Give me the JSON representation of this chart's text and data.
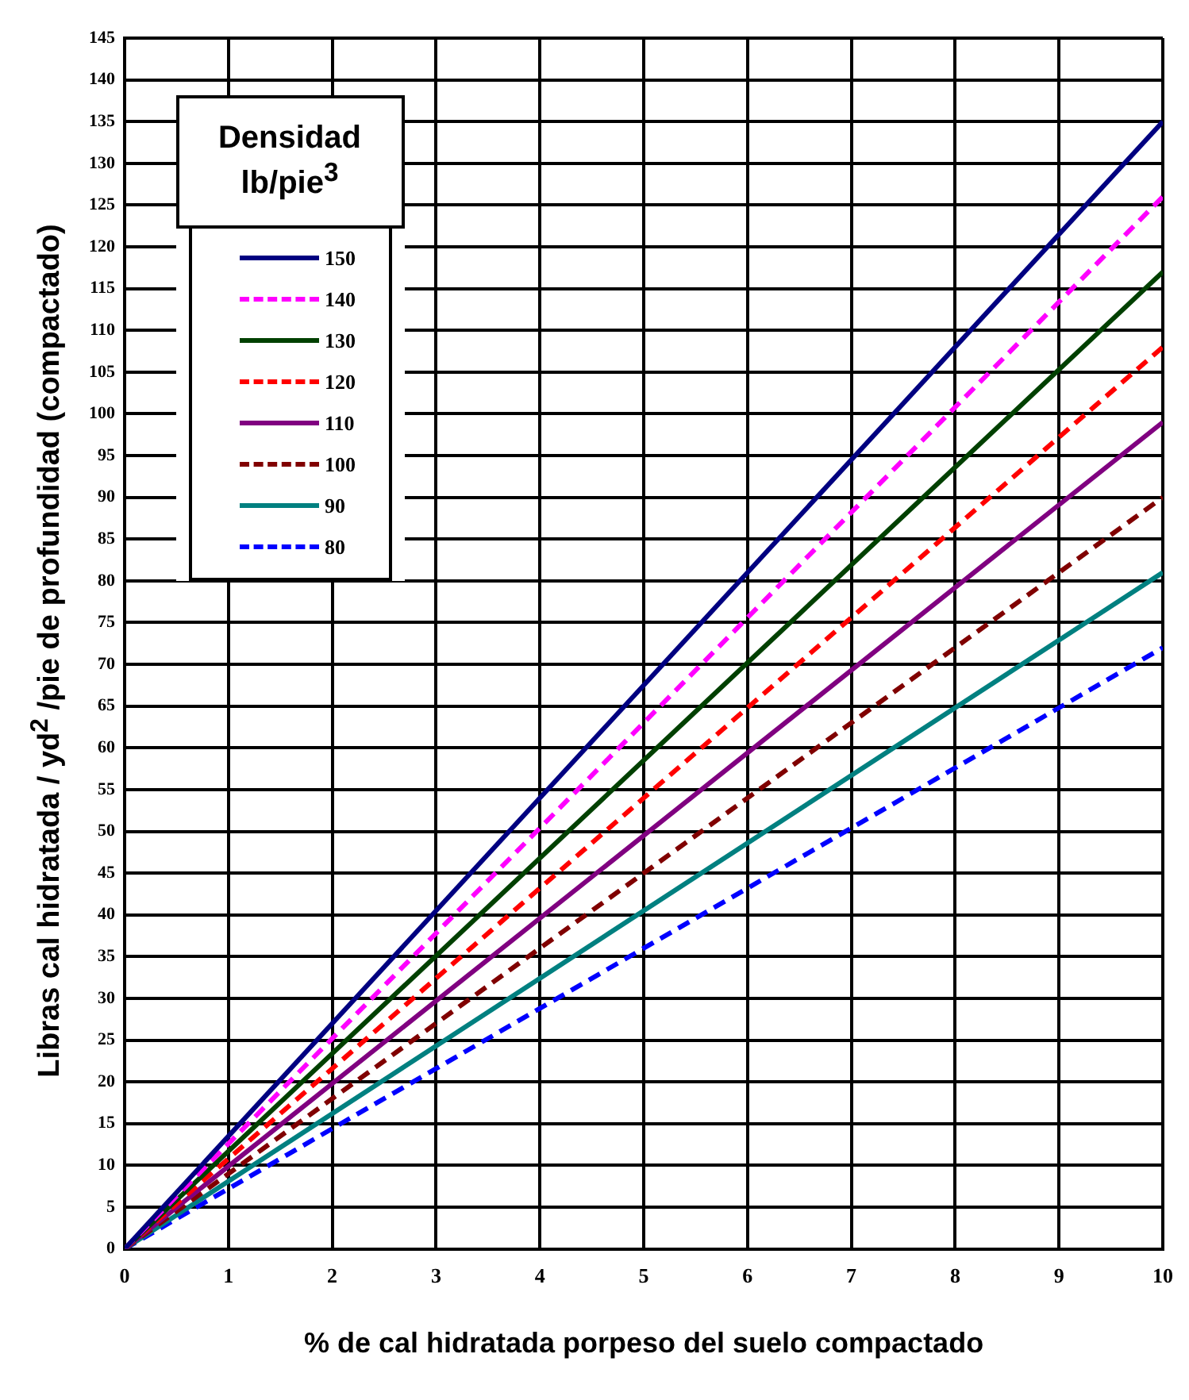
{
  "chart_data": {
    "type": "line",
    "xlabel": "% de cal hidratada porpeso del suelo compactado",
    "ylabel": "Libras cal hidratada / yd$^{2}$ /pie de profundidad (compactado)",
    "legend_title": "Densidad lb/pie$^{3}$",
    "legend": "top left",
    "grid": true,
    "marker": "none",
    "x": [
      0,
      10
    ],
    "xlim": [
      0,
      10
    ],
    "xticks": [
      0,
      1,
      2,
      3,
      4,
      5,
      6,
      7,
      8,
      9,
      10
    ],
    "ylim": [
      0,
      145
    ],
    "yticks": [
      0,
      5,
      10,
      15,
      20,
      25,
      30,
      35,
      40,
      45,
      50,
      55,
      60,
      65,
      70,
      75,
      80,
      85,
      90,
      95,
      100,
      105,
      110,
      115,
      120,
      125,
      130,
      135,
      140,
      145
    ],
    "series": [
      {
        "name": "150",
        "color": "#000080",
        "line_style": "solid",
        "values": [
          0,
          135
        ]
      },
      {
        "name": "140",
        "color": "#ff00ff",
        "line_style": "dashed",
        "values": [
          0,
          126
        ]
      },
      {
        "name": "130",
        "color": "#004000",
        "line_style": "solid",
        "values": [
          0,
          117
        ]
      },
      {
        "name": "120",
        "color": "#ff0000",
        "line_style": "dashed",
        "values": [
          0,
          108
        ]
      },
      {
        "name": "110",
        "color": "#800080",
        "line_style": "solid",
        "values": [
          0,
          99
        ]
      },
      {
        "name": "100",
        "color": "#800000",
        "line_style": "dashed",
        "values": [
          0,
          90
        ]
      },
      {
        "name": "90",
        "color": "#008080",
        "line_style": "solid",
        "values": [
          0,
          81
        ]
      },
      {
        "name": "80",
        "color": "#0000ff",
        "line_style": "dashed",
        "values": [
          0,
          72
        ]
      }
    ]
  }
}
